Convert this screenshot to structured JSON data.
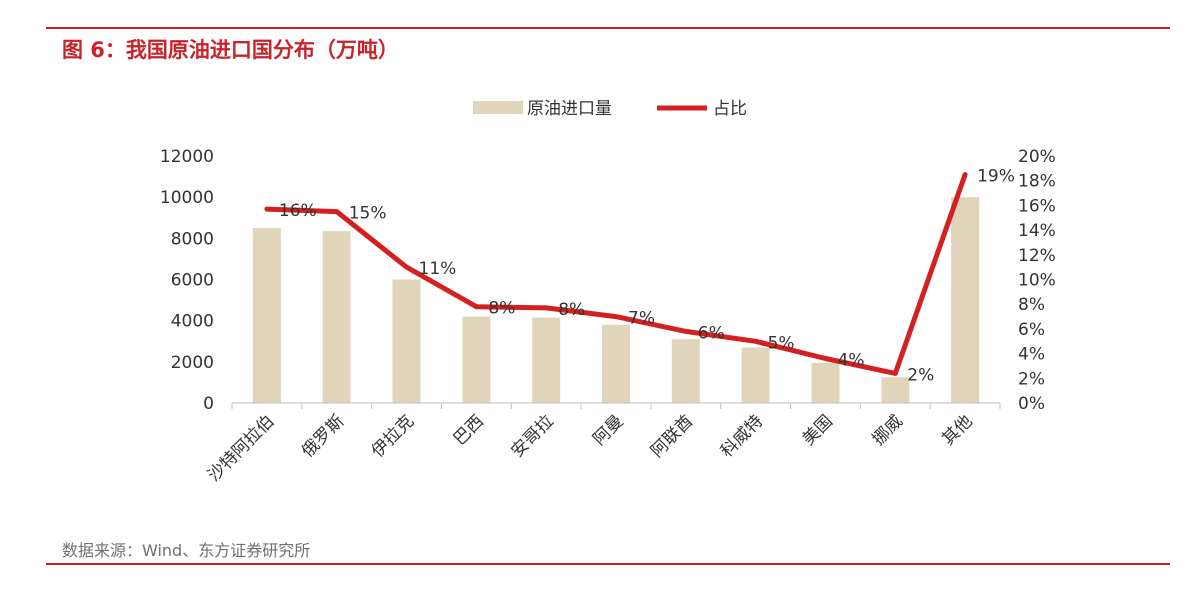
{
  "header": {
    "figure_title": "图 6：我国原油进口国分布（万吨）"
  },
  "footer": {
    "source": "数据来源：Wind、东方证券研究所"
  },
  "colors": {
    "accent": "#c8232a",
    "bar": "#e0d4bb",
    "line": "#d42020",
    "axis": "#bfbfbf",
    "text": "#333333",
    "source_text": "#707070"
  },
  "chart_data": {
    "type": "bar",
    "title": "",
    "categories": [
      "沙特阿拉伯",
      "俄罗斯",
      "伊拉克",
      "巴西",
      "安哥拉",
      "阿曼",
      "阿联酋",
      "科威特",
      "美国",
      "挪威",
      "其他"
    ],
    "series": [
      {
        "name": "原油进口量",
        "type": "bar",
        "axis": "left",
        "values": [
          8500,
          8350,
          6000,
          4200,
          4150,
          3800,
          3100,
          2700,
          1950,
          1250,
          10000
        ]
      },
      {
        "name": "占比",
        "type": "line",
        "axis": "right",
        "values": [
          15.7,
          15.5,
          11.0,
          7.8,
          7.7,
          7.0,
          5.8,
          5.0,
          3.6,
          2.4,
          18.5
        ],
        "data_labels": [
          "16%",
          "15%",
          "11%",
          "8%",
          "8%",
          "7%",
          "6%",
          "5%",
          "4%",
          "2%",
          "19%"
        ]
      }
    ],
    "left_axis": {
      "ylim": [
        0,
        12000
      ],
      "ticks": [
        "0",
        "2000",
        "4000",
        "6000",
        "8000",
        "10000",
        "12000"
      ]
    },
    "right_axis": {
      "ylim": [
        0,
        20
      ],
      "ticks": [
        "0%",
        "2%",
        "4%",
        "6%",
        "8%",
        "10%",
        "12%",
        "14%",
        "16%",
        "18%",
        "20%"
      ]
    },
    "grid": false,
    "legend": "top-center"
  }
}
